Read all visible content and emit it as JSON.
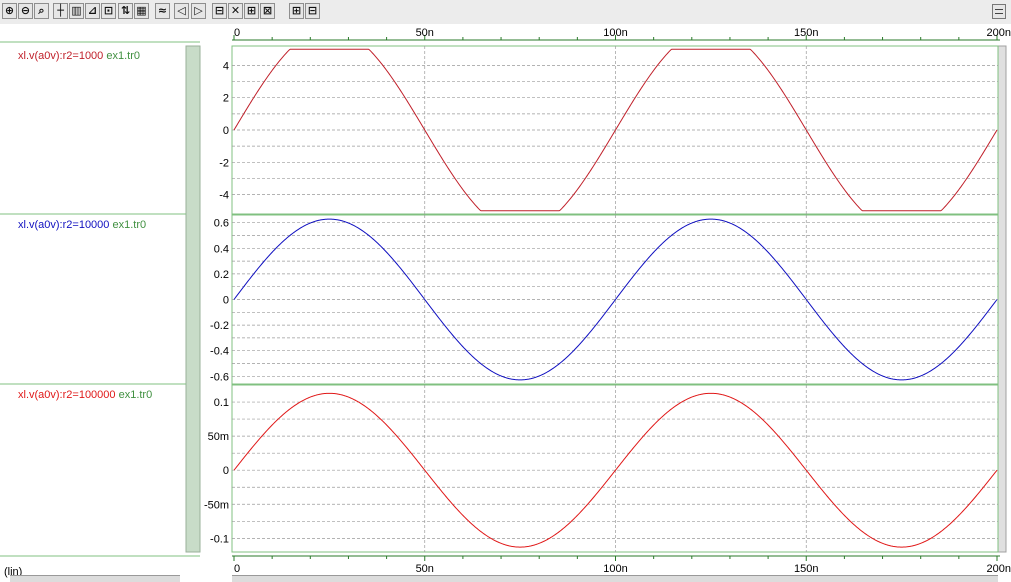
{
  "toolbar": {
    "buttons": [
      "⊕",
      "⊖",
      "⌕",
      "┼",
      "▥",
      "⊿",
      "⊡",
      "⇅",
      "▦",
      "≈",
      "◁",
      "▷",
      "⊟",
      "✕",
      "⊞",
      "⊠",
      "⊞",
      "⊟"
    ]
  },
  "scale_label": "(lin)",
  "colors": {
    "trace1": "#c0202a",
    "trace2": "#1010c0",
    "trace3": "#e01818",
    "source": "#409040",
    "frame": "#80c080",
    "grid": "#9a9a9a"
  },
  "chart_data": [
    {
      "type": "line",
      "series": [
        {
          "name": "xl.v(a0v):r2=1000",
          "source": "ex1.tr0"
        }
      ],
      "x_unit": "s",
      "xlim": [
        0,
        2e-07
      ],
      "ylim": [
        -5.2,
        5.2
      ],
      "yticks": [
        {
          "v": 4,
          "label": "4"
        },
        {
          "v": 2,
          "label": "2"
        },
        {
          "v": 0,
          "label": "0"
        },
        {
          "v": -2,
          "label": "-2"
        },
        {
          "v": -4,
          "label": "-4"
        }
      ],
      "waveform": {
        "amplitude": 6.28,
        "period": 1e-07,
        "clip": 5.0
      }
    },
    {
      "type": "line",
      "series": [
        {
          "name": "xl.v(a0v):r2=10000",
          "source": "ex1.tr0"
        }
      ],
      "x_unit": "s",
      "xlim": [
        0,
        2e-07
      ],
      "ylim": [
        -0.66,
        0.66
      ],
      "yticks": [
        {
          "v": 0.6,
          "label": "0.6"
        },
        {
          "v": 0.4,
          "label": "0.4"
        },
        {
          "v": 0.2,
          "label": "0.2"
        },
        {
          "v": 0,
          "label": "0"
        },
        {
          "v": -0.2,
          "label": "-0.2"
        },
        {
          "v": -0.4,
          "label": "-0.4"
        },
        {
          "v": -0.6,
          "label": "-0.6"
        }
      ],
      "waveform": {
        "amplitude": 0.628,
        "period": 1e-07
      }
    },
    {
      "type": "line",
      "series": [
        {
          "name": "xl.v(a0v):r2=100000",
          "source": "ex1.tr0"
        }
      ],
      "x_unit": "s",
      "xlim": [
        0,
        2e-07
      ],
      "ylim": [
        -0.12,
        0.125
      ],
      "yticks": [
        {
          "v": 0.1,
          "label": "0.1"
        },
        {
          "v": 0.05,
          "label": "50m"
        },
        {
          "v": 0,
          "label": "0"
        },
        {
          "v": -0.05,
          "label": "-50m"
        },
        {
          "v": -0.1,
          "label": "-0.1"
        }
      ],
      "waveform": {
        "amplitude": 0.1128,
        "period": 1e-07
      }
    }
  ],
  "x_axis": {
    "ticks": [
      {
        "v": 0,
        "label": "0"
      },
      {
        "v": 5e-08,
        "label": "50n"
      },
      {
        "v": 1e-07,
        "label": "100n"
      },
      {
        "v": 1.5e-07,
        "label": "150n"
      },
      {
        "v": 2e-07,
        "label": "200n"
      }
    ]
  }
}
